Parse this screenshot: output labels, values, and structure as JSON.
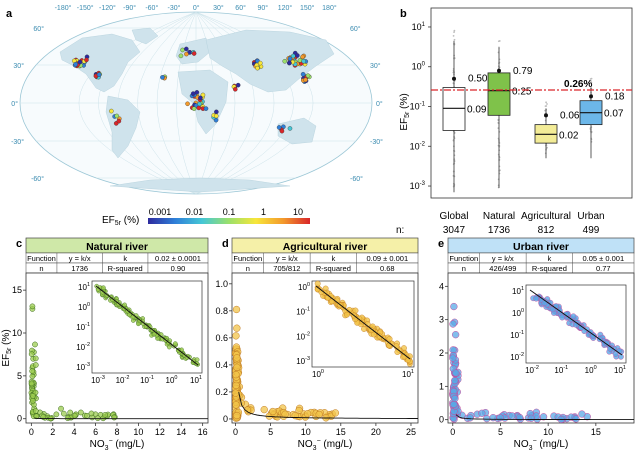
{
  "panel_a": {
    "letter": "a",
    "lon_labels": [
      "-180°",
      "-150°",
      "-120°",
      "-90°",
      "-60°",
      "-30°",
      "0°",
      "30°",
      "60°",
      "90°",
      "120°",
      "150°",
      "180°"
    ],
    "lat_labels_left": [
      "60°",
      "30°",
      "0°",
      "-30°",
      "-60°"
    ],
    "lat_labels_right": [
      "60°",
      "30°",
      "0°",
      "-30°",
      "-60°"
    ],
    "colorbar": {
      "label_main": "EF",
      "label_sub": "5r",
      "label_unit": " (%)",
      "ticks": [
        "0.001",
        "0.01",
        "0.1",
        "1",
        "10"
      ],
      "colors": [
        "#2d2a9e",
        "#2f7fd8",
        "#45c7d6",
        "#9be06a",
        "#f7e63a",
        "#f39a2c",
        "#d9262a"
      ]
    }
  },
  "panel_b": {
    "letter": "b",
    "ylabel_main": "EF",
    "ylabel_sub": "5r",
    "ylabel_unit": " (%)",
    "yticks": [
      {
        "base": "10",
        "exp": "1",
        "value": 10
      },
      {
        "base": "10",
        "exp": "0",
        "value": 1
      },
      {
        "base": "10",
        "exp": "-1",
        "value": 0.1
      },
      {
        "base": "10",
        "exp": "-2",
        "value": 0.01
      },
      {
        "base": "10",
        "exp": "-3",
        "value": 0.001
      }
    ],
    "threshold_label": "0.26%",
    "threshold_value": 0.26,
    "n_prefix": "n:",
    "categories": [
      {
        "name": "Global",
        "n": "3047",
        "color": "#ffffff",
        "mean": 0.5,
        "median": 0.09,
        "q1": 0.025,
        "q3": 0.3,
        "wlow": 0.0007,
        "whigh": 4.5,
        "mean_label": "0.50",
        "median_label": "0.09"
      },
      {
        "name": "Natural",
        "n": "1736",
        "color": "#7fc24a",
        "mean": 0.79,
        "median": 0.25,
        "q1": 0.06,
        "q3": 0.7,
        "wlow": 0.0009,
        "whigh": 3.0,
        "mean_label": "0.79",
        "median_label": "0.25"
      },
      {
        "name": "Agricultural",
        "n": "812",
        "color": "#f3ec97",
        "mean": 0.06,
        "median": 0.02,
        "q1": 0.012,
        "q3": 0.035,
        "wlow": 0.005,
        "whigh": 0.09,
        "mean_label": "0.06",
        "median_label": "0.02"
      },
      {
        "name": "Urban",
        "n": "499",
        "color": "#6cb7e9",
        "mean": 0.18,
        "median": 0.07,
        "q1": 0.035,
        "q3": 0.14,
        "wlow": 0.005,
        "whigh": 0.3,
        "mean_label": "0.18",
        "median_label": "0.07"
      }
    ]
  },
  "panel_c": {
    "letter": "c",
    "title": "Natural river",
    "header_color": "#cfe8a8",
    "point_color": "#9ccc50",
    "table": {
      "r1": [
        "Function",
        "y = k/x",
        "k",
        "0.02 ± 0.0001"
      ],
      "r2": [
        "n",
        "1736",
        "R-squared",
        "0.90"
      ]
    },
    "xlabel": "NO",
    "xlabel_sub": "3",
    "xlabel_sup": "−",
    "xlabel_unit": " (mg/L)",
    "ylabel_main": "EF",
    "ylabel_sub": "5r",
    "ylabel_unit": " (%)",
    "xticks": [
      "0",
      "2",
      "4",
      "6",
      "8",
      "10",
      "12",
      "14",
      "16"
    ],
    "yticks": [
      "0",
      "5",
      "10",
      "15"
    ],
    "inset_xticks": [
      {
        "exp": "-3"
      },
      {
        "exp": "-2"
      },
      {
        "exp": "-1"
      },
      {
        "exp": "0"
      },
      {
        "exp": "1"
      }
    ],
    "inset_yticks": [
      {
        "exp": "1"
      },
      {
        "exp": "0"
      },
      {
        "exp": "-1"
      },
      {
        "exp": "-2"
      },
      {
        "exp": "-3"
      }
    ]
  },
  "panel_d": {
    "letter": "d",
    "title": "Agricultural river",
    "header_color": "#f5f0a8",
    "point_color": "#f2c44a",
    "table": {
      "r1": [
        "Function",
        "y = k/x",
        "k",
        "0.09 ± 0.001"
      ],
      "r2": [
        "n",
        "705/812",
        "R-squared",
        "0.68"
      ]
    },
    "xlabel": "NO",
    "xlabel_sub": "3",
    "xlabel_sup": "−",
    "xlabel_unit": " (mg/L)",
    "xticks": [
      "0",
      "5",
      "10",
      "15",
      "20",
      "25"
    ],
    "yticks": [
      "0",
      "0.2",
      "0.4",
      "0.6",
      "0.8",
      "1.0"
    ],
    "inset_xticks": [
      {
        "exp": "0"
      },
      {
        "exp": "1"
      }
    ],
    "inset_yticks": [
      {
        "exp": "0"
      },
      {
        "exp": "-1"
      },
      {
        "exp": "-2"
      },
      {
        "exp": "-3"
      }
    ]
  },
  "panel_e": {
    "letter": "e",
    "title": "Urban river",
    "header_color": "#bfe1f7",
    "point_color": "#5aa8e6",
    "table": {
      "r1": [
        "Function",
        "y = k/x",
        "k",
        "0.05 ± 0.001"
      ],
      "r2": [
        "n",
        "426/499",
        "R-squared",
        "0.77"
      ]
    },
    "xlabel": "NO",
    "xlabel_sub": "3",
    "xlabel_sup": "−",
    "xlabel_unit": " (mg/L)",
    "xticks": [
      "0",
      "5",
      "10",
      "15"
    ],
    "yticks": [
      "0",
      "1",
      "2",
      "3",
      "4"
    ],
    "inset_xticks": [
      {
        "exp": "-2"
      },
      {
        "exp": "-1"
      },
      {
        "exp": "0"
      },
      {
        "exp": "1"
      }
    ],
    "inset_yticks": [
      {
        "exp": "1"
      },
      {
        "exp": "0"
      },
      {
        "exp": "-1"
      },
      {
        "exp": "-2"
      }
    ]
  },
  "chart_data": [
    {
      "type": "map",
      "title": "",
      "colorbar_ticks": [
        0.001,
        0.01,
        0.1,
        1,
        10
      ],
      "colorbar_label": "EF5r (%)"
    },
    {
      "type": "box",
      "categories": [
        "Global",
        "Natural",
        "Agricultural",
        "Urban"
      ],
      "n": [
        3047,
        1736,
        812,
        499
      ],
      "mean": [
        0.5,
        0.79,
        0.06,
        0.18
      ],
      "median": [
        0.09,
        0.25,
        0.02,
        0.07
      ],
      "ylabel": "EF5r (%)",
      "yscale": "log",
      "ylim": [
        0.0005,
        30
      ],
      "threshold": 0.26
    },
    {
      "type": "scatter",
      "title": "Natural river",
      "fit": "y = k/x",
      "k": 0.02,
      "n": "1736",
      "r_squared": 0.9,
      "xlabel": "NO3− (mg/L)",
      "ylabel": "EF5r (%)",
      "xlim": [
        -0.5,
        16.5
      ],
      "ylim": [
        -0.5,
        17
      ]
    },
    {
      "type": "scatter",
      "title": "Agricultural river",
      "fit": "y = k/x",
      "k": 0.09,
      "n": "705/812",
      "r_squared": 0.68,
      "xlabel": "NO3− (mg/L)",
      "ylim": [
        -0.03,
        1.08
      ],
      "xlim": [
        -0.5,
        26
      ]
    },
    {
      "type": "scatter",
      "title": "Urban river",
      "fit": "y = k/x",
      "k": 0.05,
      "n": "426/499",
      "r_squared": 0.77,
      "xlabel": "NO3− (mg/L)",
      "ylim": [
        -0.1,
        4.4
      ],
      "xlim": [
        -0.5,
        19
      ]
    }
  ]
}
